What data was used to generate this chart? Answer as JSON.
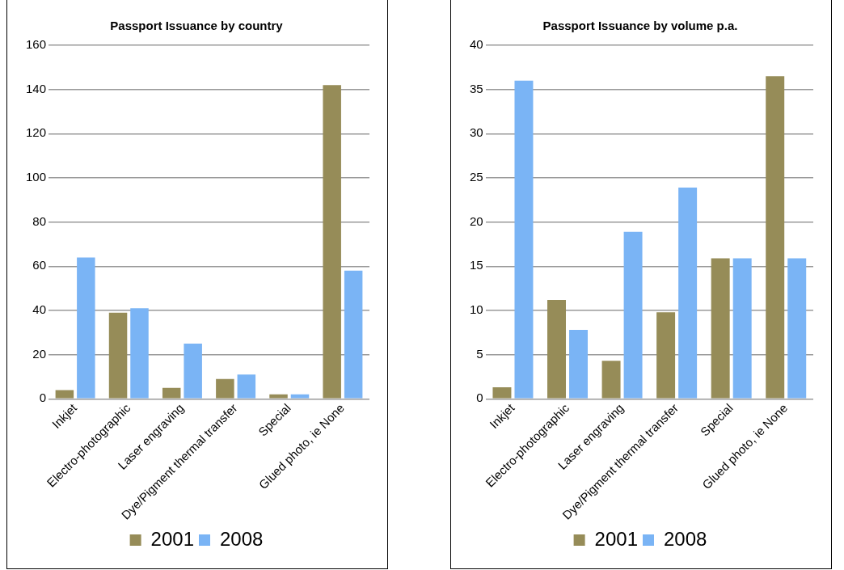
{
  "chart_data": [
    {
      "type": "bar",
      "title": "Passport Issuance by country",
      "categories": [
        "Inkjet",
        "Electro-photographic",
        "Laser engraving",
        "Dye/Pigment thermal transfer",
        "Special",
        "Glued photo, ie None"
      ],
      "series": [
        {
          "name": "2001",
          "color": "#968c58",
          "values": [
            4,
            39,
            5,
            9,
            2,
            142
          ]
        },
        {
          "name": "2008",
          "color": "#7ab4f5",
          "values": [
            64,
            41,
            25,
            11,
            2,
            58
          ]
        }
      ],
      "ylim": [
        0,
        160
      ],
      "yticks": [
        0,
        20,
        40,
        60,
        80,
        100,
        120,
        140,
        160
      ],
      "grid": "y",
      "legend": "bottom"
    },
    {
      "type": "bar",
      "title": "Passport Issuance by volume p.a.",
      "categories": [
        "Inkjet",
        "Electro-photographic",
        "Laser engraving",
        "Dye/Pigment thermal transfer",
        "Special",
        "Glued photo, ie None"
      ],
      "series": [
        {
          "name": "2001",
          "color": "#968c58",
          "values": [
            1.3,
            11.2,
            4.3,
            9.8,
            15.9,
            36.5
          ]
        },
        {
          "name": "2008",
          "color": "#7ab4f5",
          "values": [
            36,
            7.8,
            18.9,
            23.9,
            15.9,
            15.9
          ]
        }
      ],
      "ylim": [
        0,
        40
      ],
      "yticks": [
        0,
        5,
        10,
        15,
        20,
        25,
        30,
        35,
        40
      ],
      "grid": "y",
      "legend": "bottom"
    }
  ]
}
